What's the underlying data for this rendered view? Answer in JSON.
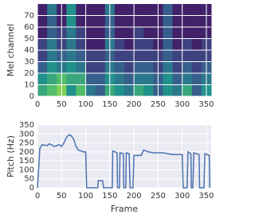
{
  "chart_data": [
    {
      "type": "heatmap",
      "ylabel": "Mel channel",
      "colormap": "viridis",
      "xlim": [
        0,
        360
      ],
      "xticks": [
        0,
        50,
        100,
        150,
        200,
        250,
        300,
        350
      ],
      "ylim": [
        0,
        80
      ],
      "yticks": [
        0,
        10,
        20,
        30,
        40,
        50,
        60,
        70
      ],
      "grid": true,
      "z": [
        [
          0.6,
          0.7,
          0.8,
          0.5,
          0.7,
          0.4,
          0.3,
          0.6,
          0.5,
          0.4,
          0.6,
          0.5,
          0.3,
          0.5,
          0.4,
          0.6,
          0.3,
          0.5
        ],
        [
          0.5,
          0.6,
          0.7,
          0.6,
          0.6,
          0.3,
          0.3,
          0.5,
          0.4,
          0.3,
          0.4,
          0.4,
          0.3,
          0.5,
          0.3,
          0.4,
          0.3,
          0.4
        ],
        [
          0.3,
          0.5,
          0.4,
          0.5,
          0.4,
          0.2,
          0.2,
          0.4,
          0.3,
          0.2,
          0.3,
          0.3,
          0.2,
          0.4,
          0.2,
          0.3,
          0.2,
          0.3
        ],
        [
          0.2,
          0.4,
          0.3,
          0.4,
          0.3,
          0.2,
          0.2,
          0.3,
          0.2,
          0.2,
          0.2,
          0.2,
          0.2,
          0.3,
          0.2,
          0.2,
          0.2,
          0.2
        ],
        [
          0.2,
          0.4,
          0.2,
          0.4,
          0.2,
          0.1,
          0.1,
          0.4,
          0.2,
          0.1,
          0.2,
          0.2,
          0.1,
          0.3,
          0.1,
          0.2,
          0.1,
          0.2
        ],
        [
          0.1,
          0.3,
          0.2,
          0.4,
          0.2,
          0.1,
          0.1,
          0.3,
          0.1,
          0.1,
          0.2,
          0.1,
          0.1,
          0.3,
          0.1,
          0.1,
          0.1,
          0.1
        ],
        [
          0.1,
          0.3,
          0.1,
          0.5,
          0.1,
          0.1,
          0.1,
          0.3,
          0.1,
          0.1,
          0.1,
          0.1,
          0.1,
          0.3,
          0.1,
          0.1,
          0.1,
          0.1
        ],
        [
          0.1,
          0.4,
          0.1,
          0.5,
          0.1,
          0.1,
          0.1,
          0.4,
          0.1,
          0.1,
          0.1,
          0.1,
          0.1,
          0.3,
          0.1,
          0.1,
          0.1,
          0.1
        ]
      ]
    },
    {
      "type": "line",
      "xlabel": "Frame",
      "ylabel": "Pitch (Hz)",
      "xlim": [
        0,
        360
      ],
      "xticks": [
        0,
        50,
        100,
        150,
        200,
        250,
        300,
        350
      ],
      "ylim": [
        0,
        350
      ],
      "yticks": [
        0,
        50,
        100,
        150,
        200,
        250,
        300,
        350
      ],
      "grid": true,
      "series": [
        {
          "color": "#4c72b0",
          "x": [
            0,
            5,
            10,
            20,
            25,
            35,
            45,
            50,
            55,
            60,
            65,
            70,
            75,
            80,
            85,
            90,
            95,
            100,
            102,
            125,
            126,
            135,
            137,
            155,
            156,
            165,
            166,
            170,
            171,
            178,
            179,
            183,
            184,
            190,
            192,
            198,
            200,
            215,
            220,
            230,
            240,
            260,
            280,
            300,
            302,
            310,
            312,
            318,
            319,
            322,
            324,
            335,
            336,
            345,
            347,
            356,
            357
          ],
          "values": [
            0,
            220,
            240,
            235,
            245,
            230,
            240,
            230,
            250,
            280,
            295,
            290,
            270,
            230,
            210,
            205,
            200,
            200,
            0,
            0,
            40,
            40,
            0,
            0,
            205,
            195,
            0,
            0,
            195,
            190,
            0,
            0,
            195,
            190,
            0,
            0,
            180,
            180,
            210,
            200,
            195,
            195,
            185,
            185,
            0,
            0,
            200,
            190,
            0,
            0,
            195,
            185,
            0,
            0,
            190,
            180,
            0
          ]
        }
      ]
    }
  ]
}
